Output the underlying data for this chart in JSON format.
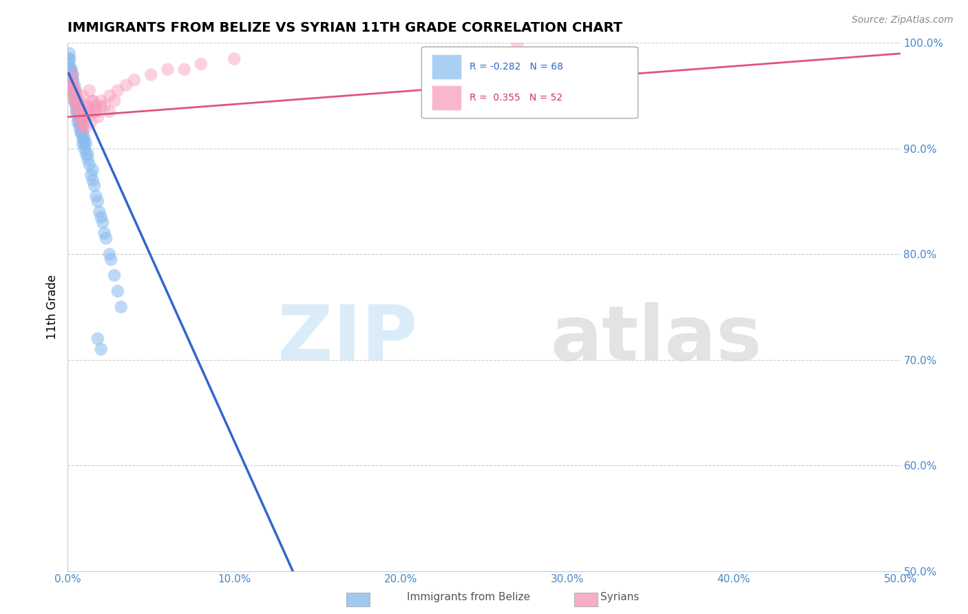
{
  "title": "IMMIGRANTS FROM BELIZE VS SYRIAN 11TH GRADE CORRELATION CHART",
  "source": "Source: ZipAtlas.com",
  "xlabel_belize": "Immigrants from Belize",
  "xlabel_syrians": "Syrians",
  "ylabel": "11th Grade",
  "xlim": [
    0.0,
    0.5
  ],
  "ylim": [
    0.5,
    1.0
  ],
  "xticks": [
    0.0,
    0.1,
    0.2,
    0.3,
    0.4,
    0.5
  ],
  "xticklabels": [
    "0.0%",
    "10.0%",
    "20.0%",
    "30.0%",
    "40.0%",
    "50.0%"
  ],
  "yticks": [
    0.5,
    0.6,
    0.7,
    0.8,
    0.9,
    1.0
  ],
  "yticklabels": [
    "50.0%",
    "60.0%",
    "70.0%",
    "80.0%",
    "90.0%",
    "100.0%"
  ],
  "blue_R": -0.282,
  "blue_N": 68,
  "pink_R": 0.355,
  "pink_N": 52,
  "blue_color": "#88bbee",
  "pink_color": "#f799bb",
  "blue_line_color": "#3366cc",
  "pink_line_color": "#e05577",
  "watermark_zip": "ZIP",
  "watermark_atlas": "atlas",
  "blue_scatter_x": [
    0.001,
    0.001,
    0.001,
    0.002,
    0.002,
    0.002,
    0.002,
    0.003,
    0.003,
    0.003,
    0.003,
    0.004,
    0.004,
    0.004,
    0.004,
    0.005,
    0.005,
    0.005,
    0.005,
    0.006,
    0.006,
    0.006,
    0.006,
    0.007,
    0.007,
    0.007,
    0.008,
    0.008,
    0.008,
    0.009,
    0.009,
    0.01,
    0.01,
    0.01,
    0.011,
    0.011,
    0.012,
    0.012,
    0.013,
    0.014,
    0.015,
    0.015,
    0.016,
    0.017,
    0.018,
    0.019,
    0.02,
    0.021,
    0.022,
    0.023,
    0.025,
    0.026,
    0.028,
    0.03,
    0.032,
    0.001,
    0.001,
    0.002,
    0.002,
    0.003,
    0.004,
    0.005,
    0.006,
    0.007,
    0.008,
    0.009,
    0.018,
    0.02
  ],
  "blue_scatter_y": [
    0.975,
    0.98,
    0.985,
    0.97,
    0.975,
    0.965,
    0.96,
    0.96,
    0.965,
    0.97,
    0.955,
    0.95,
    0.96,
    0.955,
    0.945,
    0.94,
    0.95,
    0.945,
    0.935,
    0.94,
    0.935,
    0.93,
    0.925,
    0.92,
    0.93,
    0.935,
    0.92,
    0.915,
    0.925,
    0.91,
    0.915,
    0.905,
    0.91,
    0.9,
    0.895,
    0.905,
    0.89,
    0.895,
    0.885,
    0.875,
    0.87,
    0.88,
    0.865,
    0.855,
    0.85,
    0.84,
    0.835,
    0.83,
    0.82,
    0.815,
    0.8,
    0.795,
    0.78,
    0.765,
    0.75,
    0.99,
    0.985,
    0.975,
    0.97,
    0.965,
    0.955,
    0.945,
    0.935,
    0.925,
    0.915,
    0.905,
    0.72,
    0.71
  ],
  "pink_scatter_x": [
    0.001,
    0.002,
    0.002,
    0.003,
    0.003,
    0.004,
    0.004,
    0.005,
    0.005,
    0.006,
    0.006,
    0.007,
    0.007,
    0.008,
    0.008,
    0.009,
    0.009,
    0.01,
    0.01,
    0.011,
    0.011,
    0.012,
    0.013,
    0.014,
    0.015,
    0.016,
    0.017,
    0.018,
    0.02,
    0.022,
    0.025,
    0.028,
    0.03,
    0.035,
    0.04,
    0.05,
    0.06,
    0.07,
    0.08,
    0.1,
    0.002,
    0.003,
    0.005,
    0.007,
    0.009,
    0.011,
    0.013,
    0.015,
    0.017,
    0.02,
    0.27,
    0.025
  ],
  "pink_scatter_y": [
    0.955,
    0.965,
    0.96,
    0.95,
    0.96,
    0.945,
    0.955,
    0.94,
    0.95,
    0.935,
    0.945,
    0.94,
    0.93,
    0.935,
    0.925,
    0.93,
    0.92,
    0.925,
    0.935,
    0.92,
    0.93,
    0.94,
    0.935,
    0.925,
    0.945,
    0.935,
    0.94,
    0.93,
    0.945,
    0.94,
    0.95,
    0.945,
    0.955,
    0.96,
    0.965,
    0.97,
    0.975,
    0.975,
    0.98,
    0.985,
    0.96,
    0.97,
    0.955,
    0.945,
    0.95,
    0.94,
    0.955,
    0.945,
    0.935,
    0.94,
    1.0,
    0.935
  ],
  "blue_line_slope": -3.5,
  "blue_line_intercept": 0.973,
  "pink_line_slope": 0.12,
  "pink_line_intercept": 0.93
}
